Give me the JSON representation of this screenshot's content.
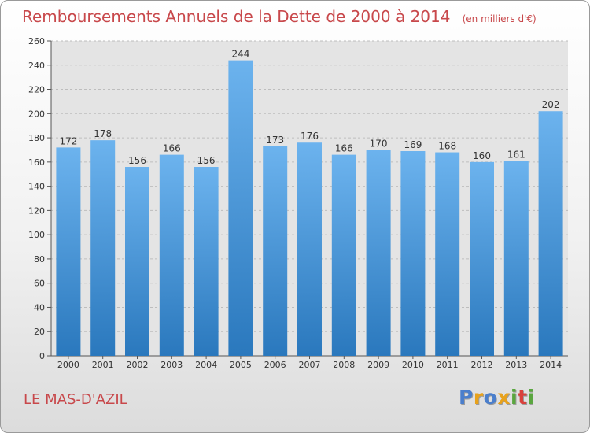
{
  "title": "Remboursements Annuels de la Dette de 2000 à 2014",
  "unit": "(en milliers d'€)",
  "commune": "LE MAS-D'AZIL",
  "logo": {
    "letters": [
      "P",
      "r",
      "o",
      "x",
      "i",
      "t",
      "i"
    ],
    "colors": [
      "#4b7fcc",
      "#e8a21c",
      "#4b7fcc",
      "#e8a21c",
      "#5aa63f",
      "#d9413c",
      "#5aa63f"
    ]
  },
  "colors": {
    "bar": "#3d8fd6",
    "bar_light": "#6cb3ee",
    "bar_dark": "#2a78bd",
    "title": "#c8484b"
  },
  "chart_data": {
    "type": "bar",
    "categories": [
      "2000",
      "2001",
      "2002",
      "2003",
      "2004",
      "2005",
      "2006",
      "2007",
      "2008",
      "2009",
      "2010",
      "2011",
      "2012",
      "2013",
      "2014"
    ],
    "values": [
      172,
      178,
      156,
      166,
      156,
      244,
      173,
      176,
      166,
      170,
      169,
      168,
      160,
      161,
      202
    ],
    "ylim": [
      0,
      260
    ],
    "yticks": [
      0,
      20,
      40,
      60,
      80,
      100,
      120,
      140,
      160,
      180,
      200,
      220,
      240,
      260
    ],
    "grid": true
  }
}
